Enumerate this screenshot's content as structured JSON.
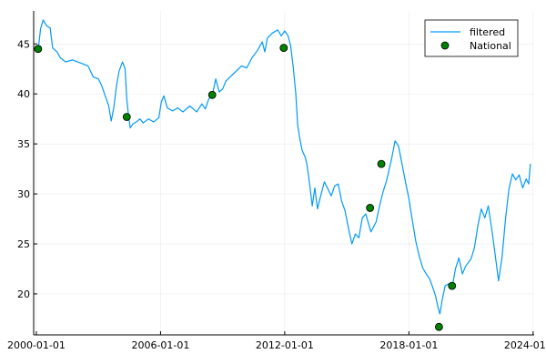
{
  "chart_data": {
    "type": "line",
    "title": "",
    "xlabel": "",
    "ylabel": "",
    "x_axis": {
      "scale": "date",
      "range": [
        "1999-11-15",
        "2024-01-20"
      ],
      "ticks": [
        "2000-01-01",
        "2006-01-01",
        "2012-01-01",
        "2018-01-01",
        "2024-01-01"
      ]
    },
    "y_axis": {
      "range": [
        15.9,
        48.3
      ],
      "ticks": [
        20,
        25,
        30,
        35,
        40,
        45
      ]
    },
    "grid": true,
    "legend_position": "top-right",
    "series": [
      {
        "name": "filtered",
        "kind": "line",
        "color": "#009AFA",
        "points": [
          [
            "2000-01-01",
            44.5
          ],
          [
            "2000-02-15",
            45.0
          ],
          [
            "2000-03-15",
            46.5
          ],
          [
            "2000-05-01",
            47.4
          ],
          [
            "2000-07-01",
            46.8
          ],
          [
            "2000-09-01",
            46.6
          ],
          [
            "2000-10-15",
            44.6
          ],
          [
            "2001-01-01",
            44.2
          ],
          [
            "2001-03-01",
            43.6
          ],
          [
            "2001-06-01",
            43.2
          ],
          [
            "2001-10-01",
            43.4
          ],
          [
            "2002-01-01",
            43.2
          ],
          [
            "2002-04-01",
            43.0
          ],
          [
            "2002-07-01",
            42.8
          ],
          [
            "2002-10-01",
            41.7
          ],
          [
            "2003-01-01",
            41.5
          ],
          [
            "2003-03-01",
            40.8
          ],
          [
            "2003-05-01",
            39.8
          ],
          [
            "2003-07-01",
            38.8
          ],
          [
            "2003-08-15",
            37.3
          ],
          [
            "2003-10-01",
            38.7
          ],
          [
            "2003-11-15",
            40.8
          ],
          [
            "2004-01-01",
            42.3
          ],
          [
            "2004-03-01",
            43.2
          ],
          [
            "2004-04-15",
            42.5
          ],
          [
            "2004-05-15",
            39.5
          ],
          [
            "2004-06-15",
            37.8
          ],
          [
            "2004-07-15",
            36.6
          ],
          [
            "2004-09-01",
            37.0
          ],
          [
            "2004-11-01",
            37.2
          ],
          [
            "2005-01-01",
            37.5
          ],
          [
            "2005-03-01",
            37.1
          ],
          [
            "2005-06-01",
            37.5
          ],
          [
            "2005-09-01",
            37.2
          ],
          [
            "2005-12-01",
            37.6
          ],
          [
            "2006-01-15",
            39.2
          ],
          [
            "2006-03-01",
            39.8
          ],
          [
            "2006-05-01",
            38.6
          ],
          [
            "2006-08-01",
            38.3
          ],
          [
            "2006-11-01",
            38.6
          ],
          [
            "2007-02-01",
            38.2
          ],
          [
            "2007-06-01",
            38.8
          ],
          [
            "2007-10-01",
            38.2
          ],
          [
            "2008-01-01",
            39.0
          ],
          [
            "2008-03-01",
            38.5
          ],
          [
            "2008-05-01",
            39.5
          ],
          [
            "2008-07-01",
            39.8
          ],
          [
            "2008-09-01",
            41.5
          ],
          [
            "2008-11-01",
            40.2
          ],
          [
            "2009-01-01",
            40.5
          ],
          [
            "2009-03-01",
            41.3
          ],
          [
            "2009-06-01",
            41.8
          ],
          [
            "2009-09-01",
            42.3
          ],
          [
            "2009-12-01",
            42.8
          ],
          [
            "2010-03-01",
            42.6
          ],
          [
            "2010-06-01",
            43.6
          ],
          [
            "2010-09-01",
            44.3
          ],
          [
            "2010-12-01",
            45.2
          ],
          [
            "2011-01-15",
            44.2
          ],
          [
            "2011-03-01",
            45.6
          ],
          [
            "2011-06-01",
            46.1
          ],
          [
            "2011-09-01",
            46.4
          ],
          [
            "2011-11-01",
            45.8
          ],
          [
            "2012-01-01",
            46.3
          ],
          [
            "2012-03-01",
            45.8
          ],
          [
            "2012-04-15",
            44.8
          ],
          [
            "2012-06-01",
            42.6
          ],
          [
            "2012-07-15",
            40.0
          ],
          [
            "2012-08-15",
            37.0
          ],
          [
            "2012-09-15",
            35.8
          ],
          [
            "2012-11-01",
            34.4
          ],
          [
            "2013-01-01",
            33.6
          ],
          [
            "2013-02-01",
            32.8
          ],
          [
            "2013-03-15",
            31.0
          ],
          [
            "2013-05-01",
            28.8
          ],
          [
            "2013-06-15",
            30.6
          ],
          [
            "2013-08-01",
            28.5
          ],
          [
            "2013-10-01",
            29.9
          ],
          [
            "2013-12-01",
            31.2
          ],
          [
            "2014-02-01",
            30.5
          ],
          [
            "2014-04-01",
            29.8
          ],
          [
            "2014-06-01",
            30.8
          ],
          [
            "2014-08-01",
            31.0
          ],
          [
            "2014-10-01",
            29.3
          ],
          [
            "2014-12-01",
            28.3
          ],
          [
            "2015-02-01",
            26.5
          ],
          [
            "2015-04-01",
            25.0
          ],
          [
            "2015-06-01",
            26.0
          ],
          [
            "2015-08-01",
            25.6
          ],
          [
            "2015-10-01",
            27.6
          ],
          [
            "2015-12-01",
            28.0
          ],
          [
            "2016-03-01",
            26.2
          ],
          [
            "2016-06-01",
            27.2
          ],
          [
            "2016-08-01",
            28.8
          ],
          [
            "2016-10-01",
            30.2
          ],
          [
            "2016-12-01",
            31.3
          ],
          [
            "2017-03-01",
            33.5
          ],
          [
            "2017-05-01",
            35.3
          ],
          [
            "2017-07-01",
            34.8
          ],
          [
            "2017-09-01",
            33.0
          ],
          [
            "2017-11-01",
            31.2
          ],
          [
            "2018-01-01",
            29.5
          ],
          [
            "2018-03-01",
            27.4
          ],
          [
            "2018-05-01",
            25.3
          ],
          [
            "2018-07-01",
            23.8
          ],
          [
            "2018-09-01",
            22.6
          ],
          [
            "2018-11-01",
            22.0
          ],
          [
            "2019-01-01",
            21.5
          ],
          [
            "2019-03-01",
            20.6
          ],
          [
            "2019-04-15",
            19.8
          ],
          [
            "2019-06-01",
            18.6
          ],
          [
            "2019-07-01",
            18.0
          ],
          [
            "2019-08-15",
            19.5
          ],
          [
            "2019-10-01",
            20.8
          ],
          [
            "2019-12-01",
            21.0
          ],
          [
            "2020-02-01",
            20.6
          ],
          [
            "2020-04-01",
            22.5
          ],
          [
            "2020-06-01",
            23.6
          ],
          [
            "2020-08-01",
            22.0
          ],
          [
            "2020-10-01",
            22.8
          ],
          [
            "2021-01-01",
            23.5
          ],
          [
            "2021-03-01",
            24.6
          ],
          [
            "2021-05-01",
            26.8
          ],
          [
            "2021-07-01",
            28.5
          ],
          [
            "2021-09-01",
            27.6
          ],
          [
            "2021-11-01",
            28.8
          ],
          [
            "2022-01-01",
            26.5
          ],
          [
            "2022-03-01",
            24.0
          ],
          [
            "2022-05-01",
            21.3
          ],
          [
            "2022-07-01",
            23.6
          ],
          [
            "2022-09-01",
            27.5
          ],
          [
            "2022-11-01",
            30.5
          ],
          [
            "2023-01-01",
            32.0
          ],
          [
            "2023-03-01",
            31.4
          ],
          [
            "2023-05-01",
            31.9
          ],
          [
            "2023-07-01",
            30.6
          ],
          [
            "2023-09-01",
            31.5
          ],
          [
            "2023-10-15",
            31.0
          ],
          [
            "2023-11-15",
            33.0
          ]
        ]
      },
      {
        "name": "National",
        "kind": "scatter",
        "color": "#008000",
        "stroke": "#000000",
        "points": [
          [
            "2000-02-01",
            44.5
          ],
          [
            "2004-05-15",
            37.7
          ],
          [
            "2008-07-01",
            39.9
          ],
          [
            "2011-12-15",
            44.6
          ],
          [
            "2016-02-15",
            28.6
          ],
          [
            "2016-09-01",
            33.0
          ],
          [
            "2019-06-15",
            16.7
          ],
          [
            "2020-02-01",
            20.8
          ]
        ]
      }
    ]
  }
}
